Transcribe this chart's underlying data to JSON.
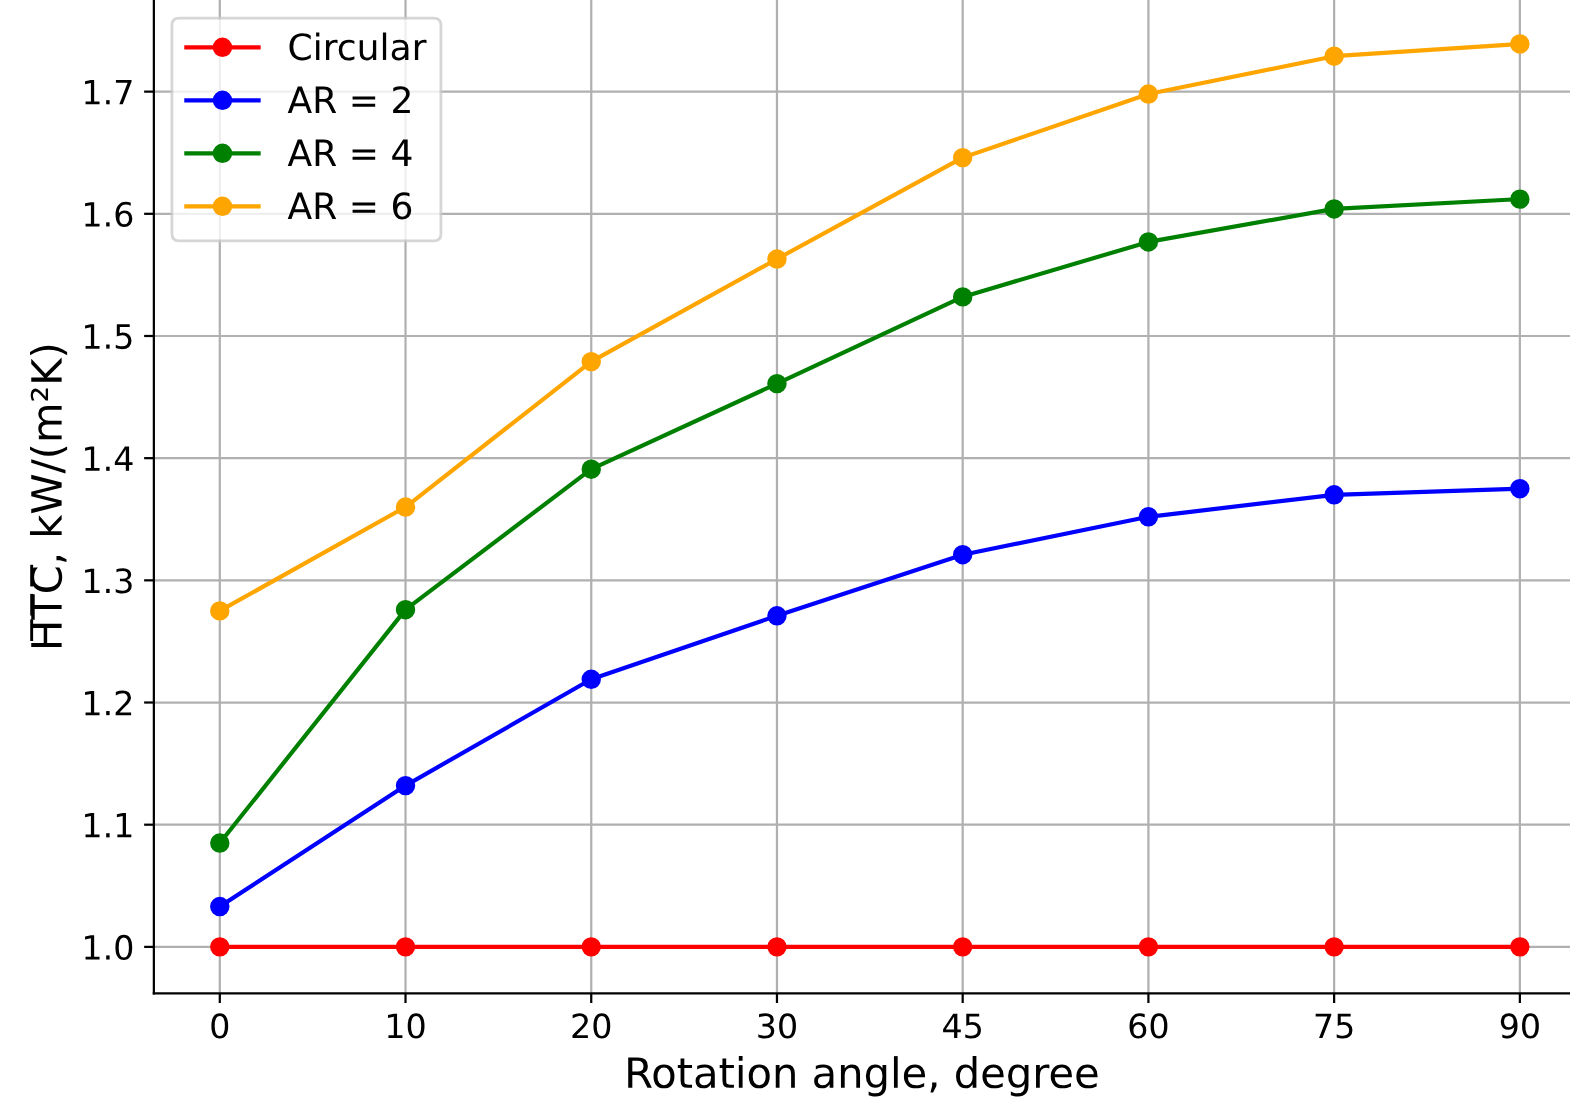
{
  "chart_data": {
    "type": "line",
    "xlabel": "Rotation angle, degree",
    "ylabel": "H̅T̅C̅, kW/(m²K)",
    "categories": [
      "0",
      "10",
      "20",
      "30",
      "45",
      "60",
      "75",
      "90"
    ],
    "series": [
      {
        "name": "Circular",
        "color": "#ff0000",
        "values": [
          1.0,
          1.0,
          1.0,
          1.0,
          1.0,
          1.0,
          1.0,
          1.0
        ]
      },
      {
        "name": "AR = 2",
        "color": "#0000ff",
        "values": [
          1.033,
          1.132,
          1.219,
          1.271,
          1.321,
          1.352,
          1.37,
          1.375
        ]
      },
      {
        "name": "AR = 4",
        "color": "#008000",
        "values": [
          1.085,
          1.276,
          1.391,
          1.461,
          1.532,
          1.577,
          1.604,
          1.612
        ]
      },
      {
        "name": "AR = 6",
        "color": "#ffa500",
        "values": [
          1.275,
          1.36,
          1.479,
          1.563,
          1.646,
          1.698,
          1.729,
          1.739
        ]
      }
    ],
    "ylim": [
      0.962,
      1.775
    ],
    "yticks": [
      {
        "value": 1.0,
        "label": "1.0"
      },
      1.1,
      1.2,
      1.3,
      1.4,
      1.5,
      1.6,
      1.7
    ],
    "grid": true,
    "legend": "top left",
    "marker": "circle",
    "line_style": "solid"
  }
}
